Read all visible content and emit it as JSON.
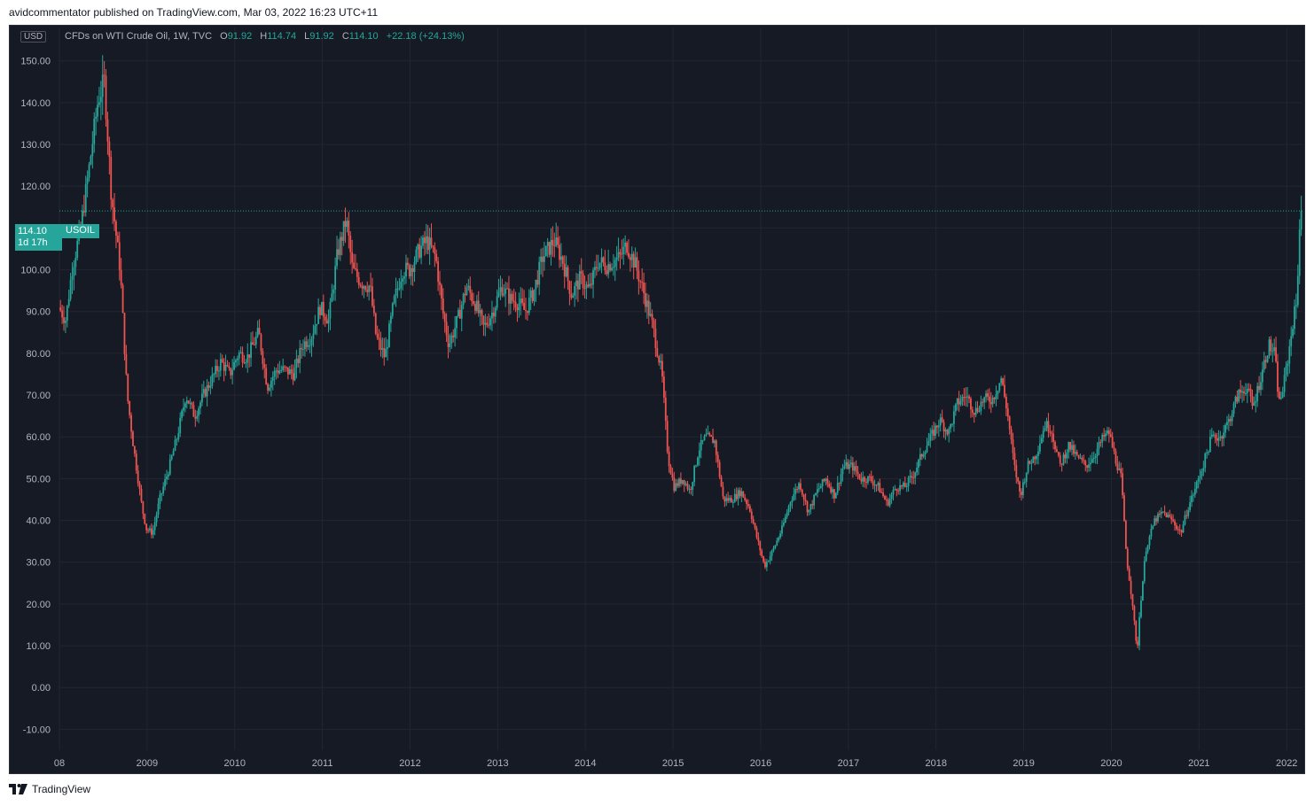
{
  "publish_line": "avidcommentator published on TradingView.com, Mar 03, 2022 16:23 UTC+11",
  "footer": {
    "brand": "TradingView",
    "logo_icon": "tradingview-logo-icon"
  },
  "legend": {
    "title": "CFDs on WTI Crude Oil, 1W, TVC",
    "o_label": "O",
    "o_value": "91.92",
    "h_label": "H",
    "h_value": "114.74",
    "l_label": "L",
    "l_value": "91.92",
    "c_label": "C",
    "c_value": "114.10",
    "change": "+22.18 (+24.13%)"
  },
  "currency": "USD",
  "last_price": {
    "price": "114.10",
    "countdown": "1d 17h",
    "symbol": "USOIL",
    "value": 114.1
  },
  "colors": {
    "background": "#161a25",
    "up": "#26a69a",
    "down": "#ef5350",
    "grid": "#232632",
    "axis_text": "#b2b5be"
  },
  "chart_data": {
    "type": "candlestick",
    "title": "CFDs on WTI Crude Oil, 1W, TVC",
    "ylim": [
      -15,
      158
    ],
    "y_ticks": [
      "150.00",
      "140.00",
      "130.00",
      "120.00",
      "110.00",
      "100.00",
      "90.00",
      "80.00",
      "70.00",
      "60.00",
      "50.00",
      "40.00",
      "30.00",
      "20.00",
      "10.00",
      "0.00",
      "-10.00"
    ],
    "y_tick_values": [
      150,
      140,
      130,
      120,
      110,
      100,
      90,
      80,
      70,
      60,
      50,
      40,
      30,
      20,
      10,
      0,
      -10
    ],
    "x_ticks": [
      "08",
      "2009",
      "2010",
      "2011",
      "2012",
      "2013",
      "2014",
      "2015",
      "2016",
      "2017",
      "2018",
      "2019",
      "2020",
      "2021",
      "2022"
    ],
    "x_tick_years": [
      2008,
      2009,
      2010,
      2011,
      2012,
      2013,
      2014,
      2015,
      2016,
      2017,
      2018,
      2019,
      2020,
      2021,
      2022
    ],
    "x_range": [
      "2008-01",
      "2022-03"
    ],
    "grid": true,
    "price_path": [
      [
        2008.0,
        91
      ],
      [
        2008.08,
        88
      ],
      [
        2008.15,
        100
      ],
      [
        2008.25,
        110
      ],
      [
        2008.35,
        125
      ],
      [
        2008.45,
        141
      ],
      [
        2008.52,
        145
      ],
      [
        2008.6,
        118
      ],
      [
        2008.7,
        100
      ],
      [
        2008.78,
        70
      ],
      [
        2008.85,
        58
      ],
      [
        2008.95,
        43
      ],
      [
        2009.0,
        38
      ],
      [
        2009.07,
        37
      ],
      [
        2009.15,
        45
      ],
      [
        2009.25,
        52
      ],
      [
        2009.35,
        60
      ],
      [
        2009.45,
        70
      ],
      [
        2009.55,
        65
      ],
      [
        2009.65,
        70
      ],
      [
        2009.75,
        74
      ],
      [
        2009.85,
        78
      ],
      [
        2009.95,
        75
      ],
      [
        2010.05,
        80
      ],
      [
        2010.15,
        79
      ],
      [
        2010.28,
        85
      ],
      [
        2010.38,
        72
      ],
      [
        2010.48,
        76
      ],
      [
        2010.58,
        76
      ],
      [
        2010.68,
        75
      ],
      [
        2010.78,
        82
      ],
      [
        2010.88,
        84
      ],
      [
        2010.98,
        91
      ],
      [
        2011.08,
        88
      ],
      [
        2011.18,
        104
      ],
      [
        2011.28,
        112
      ],
      [
        2011.35,
        100
      ],
      [
        2011.45,
        97
      ],
      [
        2011.55,
        96
      ],
      [
        2011.62,
        84
      ],
      [
        2011.72,
        79
      ],
      [
        2011.82,
        92
      ],
      [
        2011.92,
        100
      ],
      [
        2012.0,
        100
      ],
      [
        2012.12,
        105
      ],
      [
        2012.2,
        107
      ],
      [
        2012.3,
        103
      ],
      [
        2012.38,
        90
      ],
      [
        2012.45,
        82
      ],
      [
        2012.55,
        88
      ],
      [
        2012.65,
        96
      ],
      [
        2012.75,
        92
      ],
      [
        2012.85,
        86
      ],
      [
        2012.95,
        90
      ],
      [
        2013.05,
        96
      ],
      [
        2013.15,
        93
      ],
      [
        2013.25,
        92
      ],
      [
        2013.32,
        90
      ],
      [
        2013.42,
        95
      ],
      [
        2013.52,
        103
      ],
      [
        2013.65,
        107
      ],
      [
        2013.75,
        102
      ],
      [
        2013.85,
        94
      ],
      [
        2013.95,
        98
      ],
      [
        2014.05,
        95
      ],
      [
        2014.15,
        102
      ],
      [
        2014.25,
        101
      ],
      [
        2014.4,
        103
      ],
      [
        2014.48,
        106
      ],
      [
        2014.58,
        101
      ],
      [
        2014.68,
        94
      ],
      [
        2014.78,
        86
      ],
      [
        2014.88,
        75
      ],
      [
        2014.95,
        55
      ],
      [
        2015.02,
        48
      ],
      [
        2015.12,
        50
      ],
      [
        2015.2,
        47
      ],
      [
        2015.3,
        57
      ],
      [
        2015.38,
        60
      ],
      [
        2015.48,
        59
      ],
      [
        2015.58,
        45
      ],
      [
        2015.68,
        45
      ],
      [
        2015.78,
        47
      ],
      [
        2015.88,
        43
      ],
      [
        2015.95,
        37
      ],
      [
        2016.05,
        29
      ],
      [
        2016.15,
        33
      ],
      [
        2016.25,
        38
      ],
      [
        2016.35,
        45
      ],
      [
        2016.45,
        49
      ],
      [
        2016.55,
        42
      ],
      [
        2016.65,
        47
      ],
      [
        2016.75,
        50
      ],
      [
        2016.85,
        46
      ],
      [
        2016.95,
        53
      ],
      [
        2017.05,
        53
      ],
      [
        2017.15,
        50
      ],
      [
        2017.25,
        50
      ],
      [
        2017.35,
        48
      ],
      [
        2017.45,
        44
      ],
      [
        2017.55,
        48
      ],
      [
        2017.65,
        48
      ],
      [
        2017.75,
        51
      ],
      [
        2017.85,
        56
      ],
      [
        2017.95,
        60
      ],
      [
        2018.05,
        64
      ],
      [
        2018.15,
        61
      ],
      [
        2018.25,
        68
      ],
      [
        2018.35,
        70
      ],
      [
        2018.45,
        66
      ],
      [
        2018.55,
        69
      ],
      [
        2018.65,
        69
      ],
      [
        2018.75,
        74
      ],
      [
        2018.82,
        66
      ],
      [
        2018.9,
        53
      ],
      [
        2018.97,
        46
      ],
      [
        2019.05,
        53
      ],
      [
        2019.15,
        56
      ],
      [
        2019.25,
        63
      ],
      [
        2019.32,
        62
      ],
      [
        2019.42,
        53
      ],
      [
        2019.52,
        58
      ],
      [
        2019.62,
        55
      ],
      [
        2019.72,
        53
      ],
      [
        2019.82,
        56
      ],
      [
        2019.92,
        60
      ],
      [
        2019.98,
        61
      ],
      [
        2020.05,
        55
      ],
      [
        2020.12,
        50
      ],
      [
        2020.18,
        31
      ],
      [
        2020.25,
        20
      ],
      [
        2020.3,
        8
      ],
      [
        2020.33,
        18
      ],
      [
        2020.4,
        33
      ],
      [
        2020.5,
        40
      ],
      [
        2020.6,
        42
      ],
      [
        2020.7,
        40
      ],
      [
        2020.8,
        37
      ],
      [
        2020.88,
        43
      ],
      [
        2020.97,
        48
      ],
      [
        2021.05,
        53
      ],
      [
        2021.15,
        60
      ],
      [
        2021.25,
        60
      ],
      [
        2021.35,
        64
      ],
      [
        2021.45,
        70
      ],
      [
        2021.55,
        72
      ],
      [
        2021.62,
        67
      ],
      [
        2021.72,
        75
      ],
      [
        2021.8,
        82
      ],
      [
        2021.87,
        80
      ],
      [
        2021.92,
        68
      ],
      [
        2021.97,
        72
      ],
      [
        2022.03,
        80
      ],
      [
        2022.08,
        88
      ],
      [
        2022.12,
        92
      ],
      [
        2022.16,
        114
      ]
    ]
  }
}
